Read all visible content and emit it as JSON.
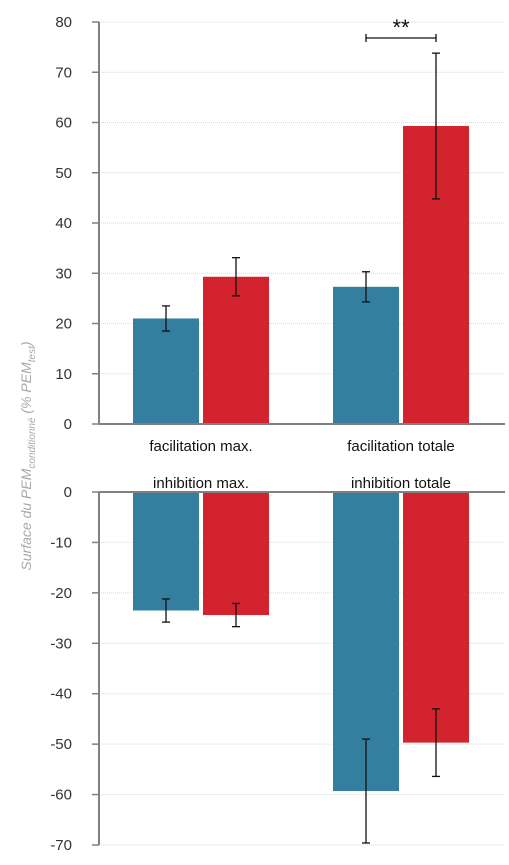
{
  "colors": {
    "series_a": "#347ea0",
    "series_b": "#d2232e",
    "axis": "#808080",
    "grid": "#d9d9d9"
  },
  "y_axis_label": {
    "prefix": "Surface du PEM",
    "sub1": "conditionné",
    "middle": " (% PEM",
    "sub2": "test",
    "suffix": ")"
  },
  "chart_data": [
    {
      "type": "bar",
      "categories": [
        "facilitation max.",
        "facilitation totale"
      ],
      "series": [
        {
          "values": [
            21,
            27.3
          ],
          "errors": [
            2.5,
            3
          ]
        },
        {
          "values": [
            29.3,
            59.3
          ],
          "errors": [
            3.8,
            14.5
          ]
        }
      ],
      "ylim": [
        0,
        80
      ],
      "yticks": [
        0,
        10,
        20,
        30,
        40,
        50,
        60,
        70,
        80
      ],
      "annotation": {
        "text": "**",
        "category": "facilitation totale"
      },
      "grid": true
    },
    {
      "type": "bar",
      "categories": [
        "inhibition max.",
        "inhibition totale"
      ],
      "series": [
        {
          "values": [
            -23.5,
            -59.3
          ],
          "errors": [
            2.3,
            10.3
          ]
        },
        {
          "values": [
            -24.4,
            -49.7
          ],
          "errors": [
            2.3,
            6.7
          ]
        }
      ],
      "ylim": [
        -70,
        0
      ],
      "yticks": [
        0,
        -10,
        -20,
        -30,
        -40,
        -50,
        -60,
        -70
      ],
      "grid": true
    }
  ]
}
